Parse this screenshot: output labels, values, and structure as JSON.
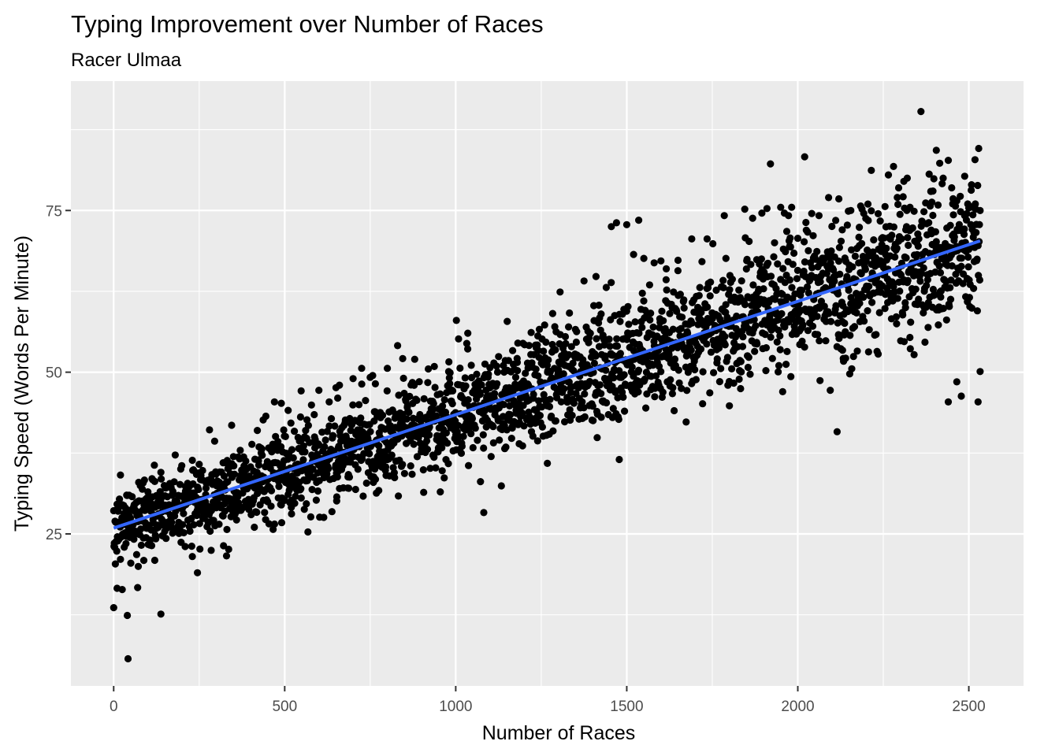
{
  "chart_data": {
    "type": "scatter",
    "title": "Typing Improvement over Number of Races",
    "subtitle": "Racer Ulmaa",
    "xlabel": "Number of Races",
    "ylabel": "Typing Speed (Words Per Minute)",
    "xlim": [
      -125,
      2660
    ],
    "ylim": [
      1.5,
      95
    ],
    "x_ticks": [
      0,
      500,
      1000,
      1500,
      2000,
      2500
    ],
    "x_tick_labels": [
      "0",
      "500",
      "1000",
      "1500",
      "2000",
      "2500"
    ],
    "y_ticks": [
      25,
      50,
      75
    ],
    "y_tick_labels": [
      "25",
      "50",
      "75"
    ],
    "grid": true,
    "panel_background": "#ebebeb",
    "point_color": "#000000",
    "trend_color": "#3366ff",
    "trend_line": {
      "method": "linear",
      "x": [
        0,
        2533
      ],
      "y": [
        25.9,
        70.3
      ]
    },
    "series": [
      {
        "summary": {
          "n_points": 2533,
          "x_range": [
            0,
            2533
          ],
          "trend_start_y": 25.9,
          "trend_end_y": 70.3,
          "residual_sd": 4.4
        },
        "points": [
          [
            0,
            13.6
          ],
          [
            10,
            16.6
          ],
          [
            25,
            16.4
          ],
          [
            40,
            12.4
          ],
          [
            42,
            5.7
          ],
          [
            70,
            16.7
          ],
          [
            138,
            12.6
          ],
          [
            20,
            34.1
          ],
          [
            38,
            31.0
          ],
          [
            60,
            29.5
          ],
          [
            100,
            31.5
          ],
          [
            120,
            33.1
          ],
          [
            180,
            37.2
          ],
          [
            210,
            31.6
          ],
          [
            230,
            21.5
          ],
          [
            245,
            19.0
          ],
          [
            260,
            34.8
          ],
          [
            290,
            33.0
          ],
          [
            320,
            36.0
          ],
          [
            345,
            41.8
          ],
          [
            330,
            21.6
          ],
          [
            380,
            36.9
          ],
          [
            420,
            41.0
          ],
          [
            445,
            43.2
          ],
          [
            470,
            45.4
          ],
          [
            490,
            45.2
          ],
          [
            510,
            44.1
          ],
          [
            520,
            28.1
          ],
          [
            548,
            47.1
          ],
          [
            568,
            25.3
          ],
          [
            600,
            47.2
          ],
          [
            630,
            45.4
          ],
          [
            650,
            47.6
          ],
          [
            655,
            46.0
          ],
          [
            660,
            48.0
          ],
          [
            652,
            30.1
          ],
          [
            700,
            49.0
          ],
          [
            725,
            50.6
          ],
          [
            750,
            49.2
          ],
          [
            765,
            48.2
          ],
          [
            775,
            31.7
          ],
          [
            768,
            31.3
          ],
          [
            800,
            50.6
          ],
          [
            830,
            54.1
          ],
          [
            845,
            52.1
          ],
          [
            880,
            52.0
          ],
          [
            920,
            50.5
          ],
          [
            980,
            51.6
          ],
          [
            1002,
            58.0
          ],
          [
            955,
            31.5
          ],
          [
            1035,
            53.6
          ],
          [
            1082,
            28.3
          ],
          [
            1100,
            50.7
          ],
          [
            1145,
            51.8
          ],
          [
            1180,
            51.5
          ],
          [
            1210,
            51.4
          ],
          [
            1240,
            55.6
          ],
          [
            1260,
            57.3
          ],
          [
            1268,
            35.9
          ],
          [
            1305,
            62.4
          ],
          [
            1330,
            57.0
          ],
          [
            1350,
            56.6
          ],
          [
            1375,
            64.1
          ],
          [
            1410,
            64.8
          ],
          [
            1425,
            59.0
          ],
          [
            1440,
            63.1
          ],
          [
            1455,
            72.5
          ],
          [
            1470,
            73.1
          ],
          [
            1478,
            36.5
          ],
          [
            1500,
            72.8
          ],
          [
            1520,
            68.2
          ],
          [
            1535,
            73.5
          ],
          [
            1550,
            67.6
          ],
          [
            1580,
            66.9
          ],
          [
            1600,
            67.2
          ],
          [
            1615,
            64.3
          ],
          [
            1650,
            67.3
          ],
          [
            1690,
            70.6
          ],
          [
            1720,
            67.1
          ],
          [
            1735,
            70.6
          ],
          [
            1785,
            74.2
          ],
          [
            1790,
            67.6
          ],
          [
            1800,
            44.8
          ],
          [
            1845,
            75.2
          ],
          [
            1868,
            73.8
          ],
          [
            1880,
            67.4
          ],
          [
            1895,
            74.6
          ],
          [
            1910,
            75.3
          ],
          [
            1920,
            82.2
          ],
          [
            1932,
            70.0
          ],
          [
            1950,
            75.5
          ],
          [
            1982,
            75.5
          ],
          [
            2000,
            70.7
          ],
          [
            2020,
            83.3
          ],
          [
            2045,
            71.1
          ],
          [
            2062,
            74.2
          ],
          [
            2065,
            48.7
          ],
          [
            2090,
            77.0
          ],
          [
            2095,
            47.2
          ],
          [
            2115,
            40.8
          ],
          [
            2120,
            76.8
          ],
          [
            2130,
            72.0
          ],
          [
            2155,
            75.0
          ],
          [
            2180,
            72.4
          ],
          [
            2205,
            76.0
          ],
          [
            2215,
            81.2
          ],
          [
            2235,
            52.8
          ],
          [
            2255,
            75.6
          ],
          [
            2265,
            80.5
          ],
          [
            2280,
            81.8
          ],
          [
            2295,
            78.5
          ],
          [
            2310,
            79.5
          ],
          [
            2320,
            80.0
          ],
          [
            2328,
            75.5
          ],
          [
            2340,
            52.7
          ],
          [
            2360,
            90.3
          ],
          [
            2370,
            60.0
          ],
          [
            2395,
            78.0
          ],
          [
            2405,
            84.3
          ],
          [
            2415,
            82.3
          ],
          [
            2425,
            80.0
          ],
          [
            2440,
            45.4
          ],
          [
            2450,
            78.5
          ],
          [
            2465,
            48.5
          ],
          [
            2478,
            46.3
          ],
          [
            2488,
            74.2
          ],
          [
            2500,
            75.4
          ],
          [
            2512,
            75.5
          ],
          [
            2522,
            70.0
          ],
          [
            2527,
            45.4
          ],
          [
            2533,
            50.1
          ]
        ]
      }
    ]
  }
}
